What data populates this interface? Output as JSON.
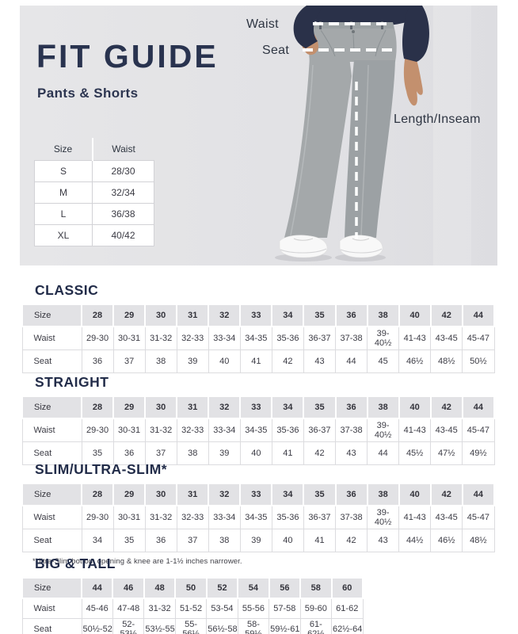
{
  "hero": {
    "title": "FIT GUIDE",
    "subtitle": "Pants & Shorts",
    "size_table": {
      "head": [
        "Size",
        "Waist"
      ],
      "body": [
        [
          "S",
          "28/30"
        ],
        [
          "M",
          "32/34"
        ],
        [
          "L",
          "36/38"
        ],
        [
          "XL",
          "40/42"
        ]
      ]
    },
    "labels": {
      "waist": "Waist",
      "seat": "Seat",
      "length": "Length/Inseam"
    }
  },
  "fit_tables": [
    {
      "title": "CLASSIC",
      "head": [
        "Size",
        "28",
        "29",
        "30",
        "31",
        "32",
        "33",
        "34",
        "35",
        "36",
        "38",
        "40",
        "42",
        "44"
      ],
      "body": [
        [
          "Waist",
          "29-30",
          "30-31",
          "31-32",
          "32-33",
          "33-34",
          "34-35",
          "35-36",
          "36-37",
          "37-38",
          "39-40½",
          "41-43",
          "43-45",
          "45-47"
        ],
        [
          "Seat",
          "36",
          "37",
          "38",
          "39",
          "40",
          "41",
          "42",
          "43",
          "44",
          "45",
          "46½",
          "48½",
          "50½"
        ]
      ],
      "footnote": ""
    },
    {
      "title": "STRAIGHT",
      "head": [
        "Size",
        "28",
        "29",
        "30",
        "31",
        "32",
        "33",
        "34",
        "35",
        "36",
        "38",
        "40",
        "42",
        "44"
      ],
      "body": [
        [
          "Waist",
          "29-30",
          "30-31",
          "31-32",
          "32-33",
          "33-34",
          "34-35",
          "35-36",
          "36-37",
          "37-38",
          "39-40½",
          "41-43",
          "43-45",
          "45-47"
        ],
        [
          "Seat",
          "35",
          "36",
          "37",
          "38",
          "39",
          "40",
          "41",
          "42",
          "43",
          "44",
          "45½",
          "47½",
          "49½"
        ]
      ],
      "footnote": ""
    },
    {
      "title": "SLIM/ULTRA-SLIM*",
      "head": [
        "Size",
        "28",
        "29",
        "30",
        "31",
        "32",
        "33",
        "34",
        "35",
        "36",
        "38",
        "40",
        "42",
        "44"
      ],
      "body": [
        [
          "Waist",
          "29-30",
          "30-31",
          "31-32",
          "32-33",
          "33-34",
          "34-35",
          "35-36",
          "36-37",
          "37-38",
          "39-40½",
          "41-43",
          "43-45",
          "45-47"
        ],
        [
          "Seat",
          "34",
          "35",
          "36",
          "37",
          "38",
          "39",
          "40",
          "41",
          "42",
          "43",
          "44½",
          "46½",
          "48½"
        ]
      ],
      "footnote": "*Ultra-Slim bottom opening & knee are 1-1½ inches narrower."
    },
    {
      "title": "BIG & TALL",
      "head": [
        "Size",
        "44",
        "46",
        "48",
        "50",
        "52",
        "54",
        "56",
        "58",
        "60"
      ],
      "body": [
        [
          "Waist",
          "45-46",
          "47-48",
          "31-32",
          "51-52",
          "53-54",
          "55-56",
          "57-58",
          "59-60",
          "61-62"
        ],
        [
          "Seat",
          "50½-52",
          "52-53½",
          "53½-55",
          "55-56½",
          "56½-58",
          "58-59½",
          "59½-61",
          "61-62½",
          "62½-64"
        ]
      ],
      "footnote": ""
    }
  ],
  "palette": {
    "navy_accent": "#29334f",
    "hero_background": "#e2e2e5",
    "table_header_background": "#e2e2e5",
    "table_border": "#dcdcdf",
    "pants_gray": "#a4a8aa",
    "shirt_navy": "#2a3149",
    "skin": "#c3906e",
    "dash_line": "#ffffff"
  }
}
